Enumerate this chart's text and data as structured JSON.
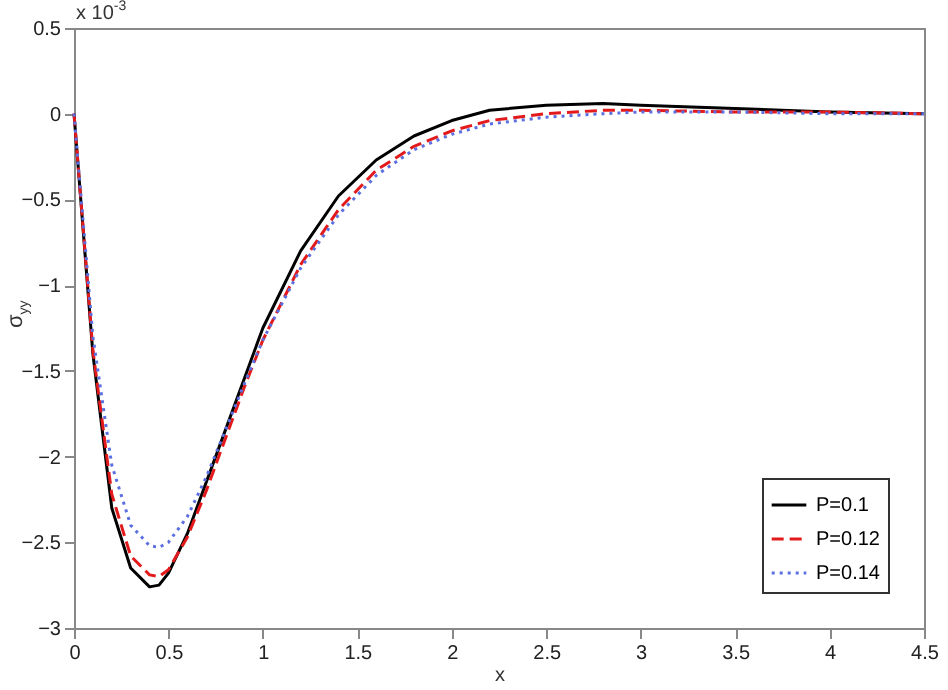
{
  "chart_data": {
    "type": "line",
    "xlabel": "x",
    "ylabel": "σ$_{yy}$",
    "annotations": [
      "x 10$^{-3}$"
    ],
    "x": [
      0,
      0.1,
      0.2,
      0.3,
      0.4,
      0.45,
      0.5,
      0.6,
      0.7,
      0.8,
      0.9,
      1.0,
      1.2,
      1.4,
      1.6,
      1.8,
      2.0,
      2.2,
      2.5,
      2.8,
      3.0,
      3.5,
      4.0,
      4.5
    ],
    "series": [
      {
        "name": "P=0.1",
        "color": "#000000",
        "line_style": "solid",
        "values": [
          0,
          -1.4,
          -2.3,
          -2.65,
          -2.76,
          -2.75,
          -2.68,
          -2.45,
          -2.15,
          -1.85,
          -1.55,
          -1.25,
          -0.8,
          -0.48,
          -0.27,
          -0.13,
          -0.04,
          0.02,
          0.05,
          0.06,
          0.05,
          0.03,
          0.01,
          0
        ]
      },
      {
        "name": "P=0.12",
        "color": "#e31a1c",
        "line_style": "dashed",
        "values": [
          0,
          -1.38,
          -2.22,
          -2.58,
          -2.69,
          -2.7,
          -2.66,
          -2.47,
          -2.2,
          -1.9,
          -1.6,
          -1.32,
          -0.88,
          -0.56,
          -0.33,
          -0.19,
          -0.1,
          -0.04,
          0.0,
          0.02,
          0.02,
          0.01,
          0.01,
          0
        ]
      },
      {
        "name": "P=0.14",
        "color": "#5b6fe0",
        "line_style": "dotted",
        "values": [
          0,
          -1.3,
          -2.05,
          -2.4,
          -2.52,
          -2.53,
          -2.5,
          -2.35,
          -2.12,
          -1.85,
          -1.58,
          -1.32,
          -0.9,
          -0.59,
          -0.36,
          -0.21,
          -0.12,
          -0.06,
          -0.02,
          0.0,
          0.01,
          0.01,
          0.0,
          0
        ]
      }
    ],
    "xlim": [
      0,
      4.5
    ],
    "xticks": [
      0,
      0.5,
      1,
      1.5,
      2,
      2.5,
      3,
      3.5,
      4,
      4.5
    ],
    "ylim": [
      -3,
      0.5
    ],
    "yticks": [
      -3,
      -2.5,
      -2,
      -1.5,
      -1,
      -0.5,
      0,
      0.5
    ],
    "grid": false,
    "legend": "bottom right",
    "marker": "none"
  }
}
